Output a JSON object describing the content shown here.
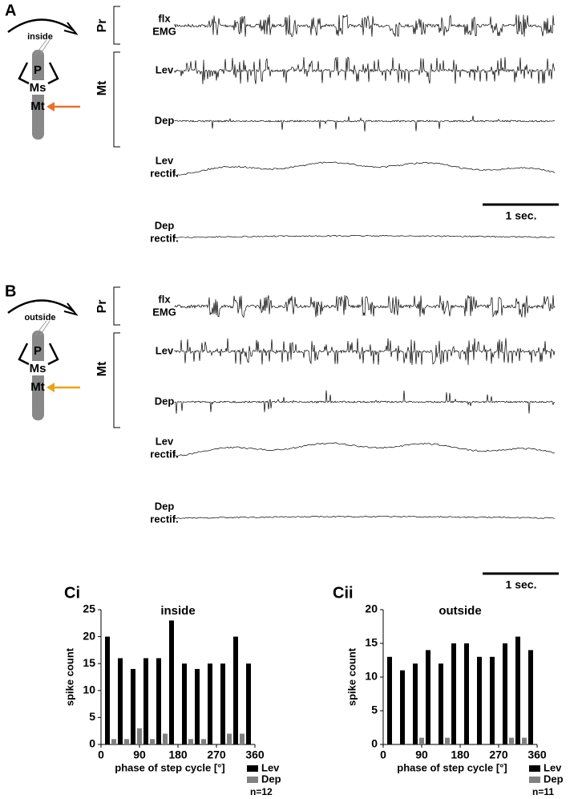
{
  "panels": [
    {
      "letter": "A",
      "schematic_label": "inside",
      "segments": [
        "P",
        "Ms",
        "Mt"
      ],
      "groups": [
        "Pr",
        "Mt"
      ],
      "traces": [
        [
          "flx",
          "EMG"
        ],
        [
          "Lev"
        ],
        [
          "Dep"
        ],
        [
          "Lev",
          "rectif."
        ],
        [
          "Dep",
          "rectif."
        ]
      ],
      "scale_bar": "1 sec."
    },
    {
      "letter": "B",
      "schematic_label": "outside",
      "segments": [
        "P",
        "Ms",
        "Mt"
      ],
      "groups": [
        "Pr",
        "Mt"
      ],
      "traces": [
        [
          "flx",
          "EMG"
        ],
        [
          "Lev"
        ],
        [
          "Dep"
        ],
        [
          "Lev",
          "rectif."
        ],
        [
          "Dep",
          "rectif."
        ]
      ],
      "scale_bar": "1 sec."
    }
  ],
  "chart_data": [
    {
      "type": "bar",
      "panel": "Ci",
      "title": "inside",
      "xlabel": "phase of step cycle [°]",
      "ylabel": "spike count",
      "x": [
        15,
        45,
        75,
        105,
        135,
        165,
        195,
        225,
        255,
        285,
        315,
        345
      ],
      "series": [
        {
          "name": "Lev",
          "color": "#000000",
          "values": [
            20,
            16,
            14,
            16,
            16,
            23,
            15,
            14,
            15,
            15,
            20,
            15
          ]
        },
        {
          "name": "Dep",
          "color": "#808080",
          "values": [
            0,
            1,
            1,
            3,
            1,
            2,
            0,
            1,
            1,
            0,
            2,
            2
          ]
        }
      ],
      "xlim": [
        0,
        360
      ],
      "xticks": [
        0,
        90,
        180,
        270,
        360
      ],
      "ylim": [
        0,
        25
      ],
      "yticks": [
        0,
        5,
        10,
        15,
        20,
        25
      ],
      "annotation": "n=12"
    },
    {
      "type": "bar",
      "panel": "Cii",
      "title": "outside",
      "xlabel": "phase of step cycle [°]",
      "ylabel": "spike count",
      "x": [
        15,
        45,
        75,
        105,
        135,
        165,
        195,
        225,
        255,
        285,
        315,
        345
      ],
      "series": [
        {
          "name": "Lev",
          "color": "#000000",
          "values": [
            13,
            11,
            12,
            14,
            12,
            15,
            15,
            13,
            13,
            15,
            16,
            14
          ]
        },
        {
          "name": "Dep",
          "color": "#808080",
          "values": [
            0,
            0,
            0,
            1,
            0,
            1,
            0,
            0,
            0,
            0,
            1,
            1
          ]
        }
      ],
      "xlim": [
        0,
        360
      ],
      "xticks": [
        0,
        90,
        180,
        270,
        360
      ],
      "ylim": [
        0,
        20
      ],
      "yticks": [
        0,
        5,
        10,
        15,
        20
      ],
      "annotation": "n=11"
    }
  ]
}
